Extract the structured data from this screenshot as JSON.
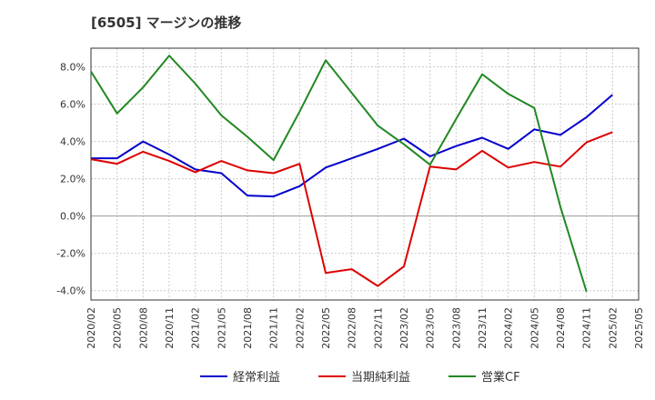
{
  "chart_data": {
    "type": "line",
    "title": "[6505]  マージンの推移",
    "xlabel": "",
    "ylabel": "",
    "ylim": [
      -4.5,
      9.0
    ],
    "y_ticks": [
      "8.0%",
      "6.0%",
      "4.0%",
      "2.0%",
      "0.0%",
      "-2.0%",
      "-4.0%"
    ],
    "y_tick_values": [
      8,
      6,
      4,
      2,
      0,
      -2,
      -4
    ],
    "categories": [
      "2020/02",
      "2020/05",
      "2020/08",
      "2020/11",
      "2021/02",
      "2021/05",
      "2021/08",
      "2021/11",
      "2022/02",
      "2022/05",
      "2022/08",
      "2022/11",
      "2023/02",
      "2023/05",
      "2023/08",
      "2023/11",
      "2024/02",
      "2024/05",
      "2024/08",
      "2024/11",
      "2025/02",
      "2025/05"
    ],
    "grid": true,
    "legend_position": "bottom",
    "series": [
      {
        "name": "経常利益",
        "color": "#0000cc",
        "values": [
          3.1,
          3.1,
          4.0,
          3.3,
          2.5,
          2.3,
          1.1,
          1.05,
          1.6,
          2.6,
          3.1,
          3.6,
          4.15,
          3.2,
          3.75,
          4.2,
          3.6,
          4.65,
          4.35,
          5.3,
          6.5,
          null
        ]
      },
      {
        "name": "当期純利益",
        "color": "#dd0000",
        "values": [
          3.05,
          2.8,
          3.45,
          2.95,
          2.35,
          2.95,
          2.45,
          2.3,
          2.8,
          -3.05,
          -2.85,
          -3.75,
          -2.7,
          2.65,
          2.5,
          3.5,
          2.6,
          2.9,
          2.65,
          3.95,
          4.5,
          null
        ]
      },
      {
        "name": "営業CF",
        "color": "#228822",
        "values": [
          7.75,
          5.5,
          6.9,
          8.6,
          7.1,
          5.4,
          4.25,
          3.0,
          5.6,
          8.35,
          6.6,
          4.85,
          3.85,
          2.75,
          5.2,
          7.6,
          6.55,
          5.8,
          0.5,
          -4.05,
          null,
          null
        ]
      }
    ]
  }
}
